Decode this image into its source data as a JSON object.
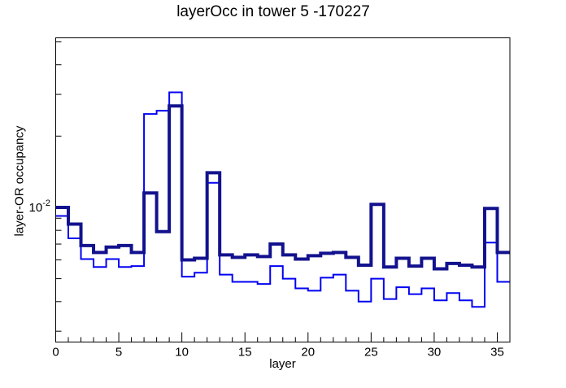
{
  "page": {
    "background": "#ffffff"
  },
  "chart_data": {
    "type": "line",
    "style": "unfilled step histogram outlines (ROOT-style), two overlaid series",
    "title": "layerOcc in tower 5 -170227",
    "xlabel": "layer",
    "ylabel": "layer-OR occupancy",
    "xlim": [
      0,
      36
    ],
    "ylim": [
      0.0027,
      0.052
    ],
    "yscale": "log",
    "grid": false,
    "legend": "none",
    "x_bin_width": 1,
    "x_major_ticks": [
      0,
      5,
      10,
      15,
      20,
      25,
      30,
      35
    ],
    "x_minor_tick_step": 1,
    "y_labeled_tick": {
      "value": 0.01,
      "base": "10",
      "exponent": "-2"
    },
    "y_major_ticks": [
      0.01
    ],
    "y_minor_ticks": [
      0.003,
      0.004,
      0.005,
      0.006,
      0.007,
      0.008,
      0.009,
      0.02,
      0.03,
      0.04,
      0.05
    ],
    "categories": [
      0,
      1,
      2,
      3,
      4,
      5,
      6,
      7,
      8,
      9,
      10,
      11,
      12,
      13,
      14,
      15,
      16,
      17,
      18,
      19,
      20,
      21,
      22,
      23,
      24,
      25,
      26,
      27,
      28,
      29,
      30,
      31,
      32,
      33,
      34,
      35
    ],
    "series": [
      {
        "name": "layer-OR occupancy (thick dark-blue histogram)",
        "color": "#12128e",
        "line_width": 4,
        "values": [
          0.01,
          0.0085,
          0.0069,
          0.00645,
          0.0068,
          0.0069,
          0.00645,
          0.0115,
          0.0079,
          0.0268,
          0.006,
          0.0061,
          0.014,
          0.0063,
          0.00615,
          0.0063,
          0.0062,
          0.007,
          0.0063,
          0.00605,
          0.00625,
          0.0064,
          0.00645,
          0.00615,
          0.0057,
          0.0103,
          0.0056,
          0.0061,
          0.00565,
          0.0061,
          0.0055,
          0.0058,
          0.0057,
          0.0056,
          0.0099,
          0.00645
        ]
      },
      {
        "name": "layer-OR occupancy (thin blue histogram)",
        "color": "#0202f2",
        "line_width": 2,
        "values": [
          0.0092,
          0.0074,
          0.00605,
          0.0056,
          0.00605,
          0.0056,
          0.00565,
          0.0248,
          0.0256,
          0.0306,
          0.0051,
          0.0053,
          0.0127,
          0.0052,
          0.00485,
          0.00485,
          0.00475,
          0.00565,
          0.005,
          0.00455,
          0.00445,
          0.00505,
          0.0052,
          0.00445,
          0.004,
          0.005,
          0.0041,
          0.0046,
          0.0043,
          0.00455,
          0.00405,
          0.00435,
          0.00405,
          0.0038,
          0.0071,
          0.00485
        ]
      }
    ]
  }
}
